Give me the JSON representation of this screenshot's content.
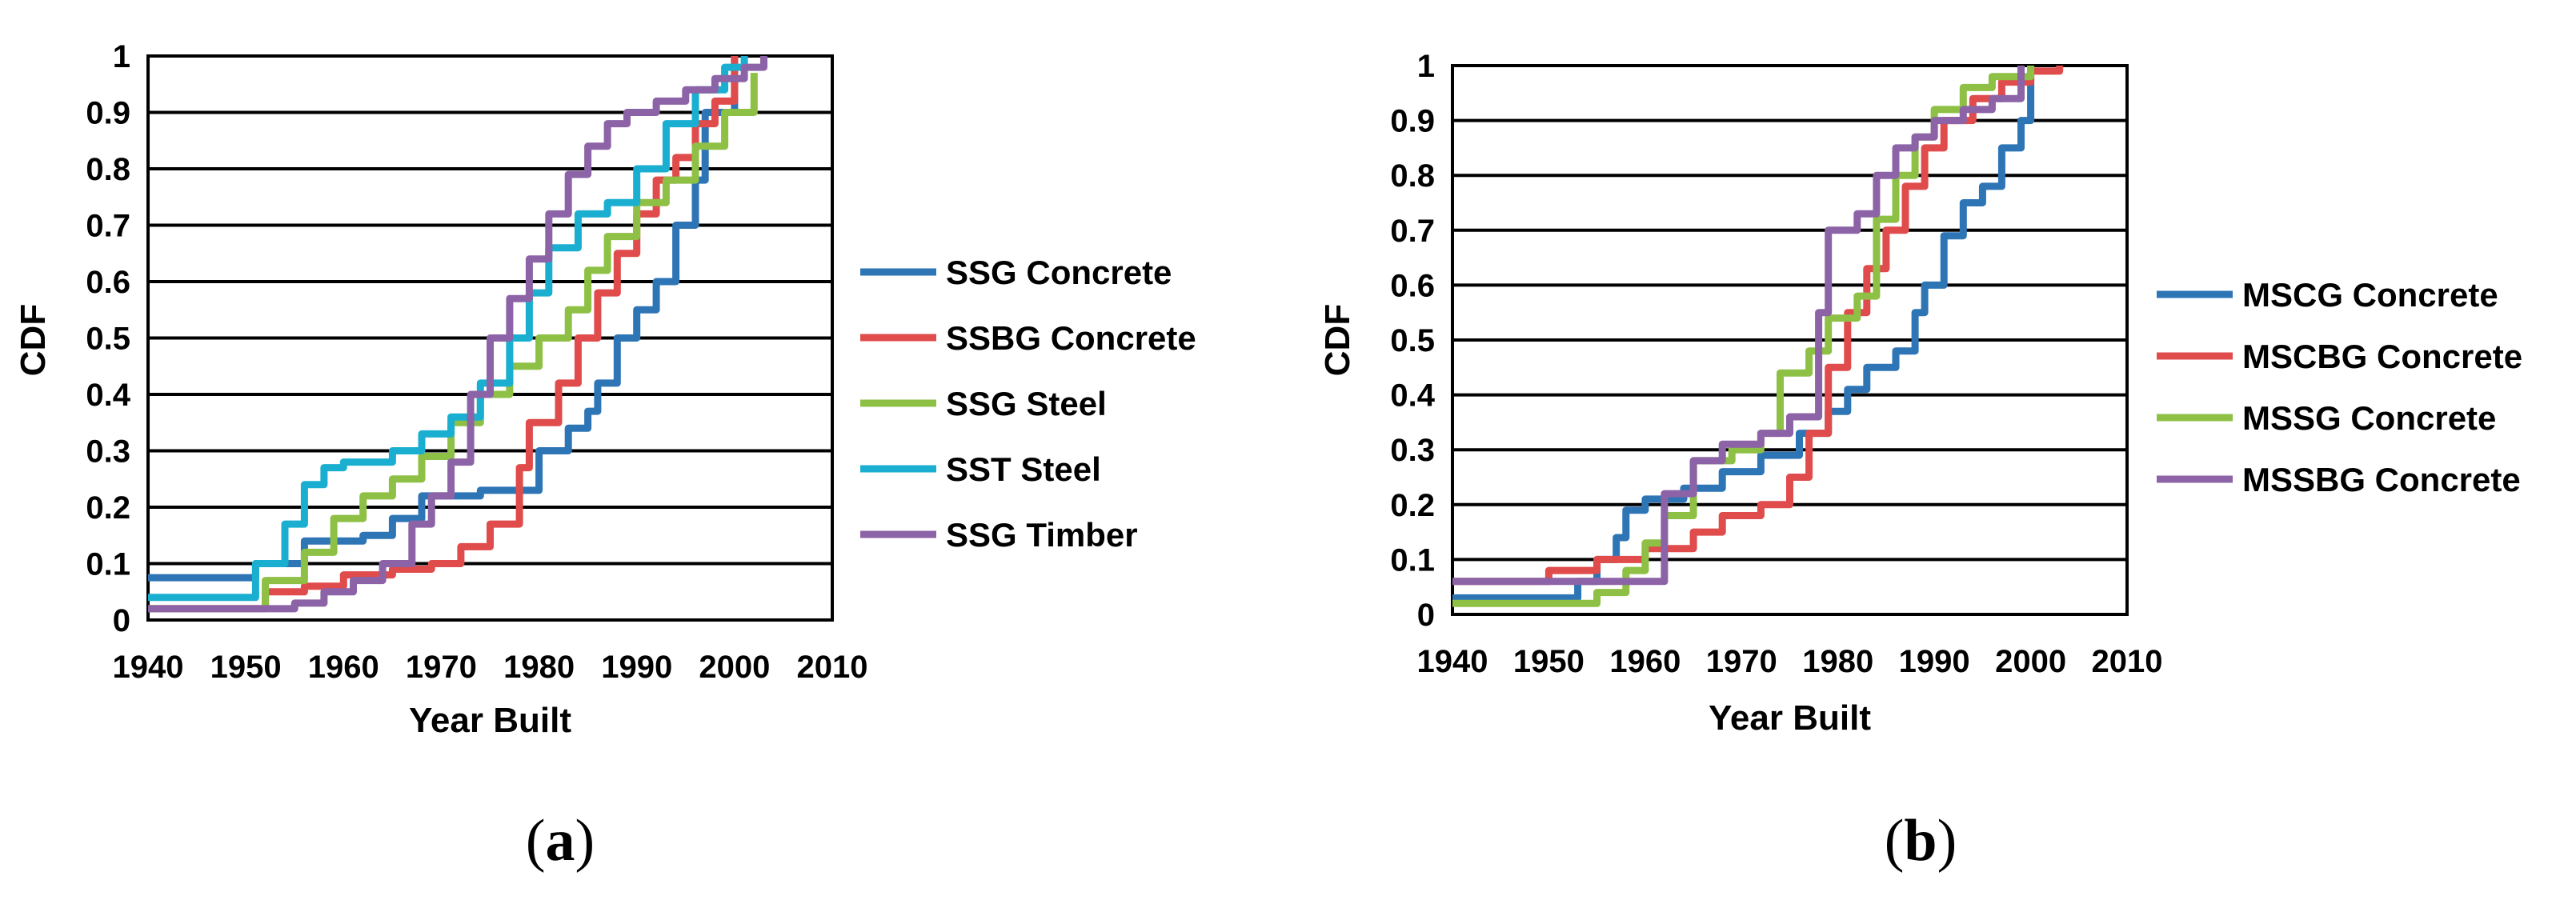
{
  "colors": {
    "blue": "#2E75B6",
    "red": "#E04B4B",
    "green": "#8DC045",
    "cyan": "#1AAFD0",
    "purple": "#8C63A6"
  },
  "chart_data": [
    {
      "type": "line",
      "step": true,
      "caption_letter": "a",
      "xlabel": "Year Built",
      "ylabel": "CDF",
      "xlim": [
        1940,
        2010
      ],
      "ylim": [
        0,
        1
      ],
      "xticks": [
        "1940",
        "1950",
        "1960",
        "1970",
        "1980",
        "1990",
        "2000",
        "2010"
      ],
      "yticks": [
        "0",
        "0.1",
        "0.2",
        "0.3",
        "0.4",
        "0.5",
        "0.6",
        "0.7",
        "0.8",
        "0.9",
        "1"
      ],
      "grid": true,
      "legend_position": "right",
      "series": [
        {
          "name": "SSG Concrete",
          "color": "#2E75B6",
          "x": [
            1940,
            1948,
            1951,
            1956,
            1962,
            1965,
            1968,
            1974,
            1977,
            1980,
            1983,
            1985,
            1986,
            1988,
            1990,
            1992,
            1994,
            1996,
            1997,
            2000
          ],
          "y": [
            0.075,
            0.075,
            0.1,
            0.14,
            0.15,
            0.18,
            0.22,
            0.23,
            0.23,
            0.3,
            0.34,
            0.37,
            0.42,
            0.5,
            0.55,
            0.6,
            0.7,
            0.78,
            0.9,
            1.0
          ]
        },
        {
          "name": "SSBG Concrete",
          "color": "#E04B4B",
          "x": [
            1940,
            1948,
            1952,
            1956,
            1960,
            1965,
            1969,
            1972,
            1975,
            1978,
            1979,
            1982,
            1984,
            1986,
            1988,
            1990,
            1992,
            1994,
            1996,
            1998,
            2000
          ],
          "y": [
            0.02,
            0.02,
            0.05,
            0.06,
            0.08,
            0.09,
            0.1,
            0.13,
            0.17,
            0.27,
            0.35,
            0.42,
            0.5,
            0.58,
            0.65,
            0.72,
            0.78,
            0.82,
            0.88,
            0.92,
            1.0
          ]
        },
        {
          "name": "SSG Steel",
          "color": "#8DC045",
          "x": [
            1940,
            1948,
            1952,
            1956,
            1959,
            1962,
            1965,
            1968,
            1971,
            1974,
            1977,
            1980,
            1983,
            1985,
            1987,
            1990,
            1993,
            1996,
            1999,
            2002
          ],
          "y": [
            0.02,
            0.02,
            0.07,
            0.12,
            0.18,
            0.22,
            0.25,
            0.29,
            0.35,
            0.4,
            0.45,
            0.5,
            0.55,
            0.62,
            0.68,
            0.74,
            0.78,
            0.84,
            0.9,
            0.97
          ]
        },
        {
          "name": "SST Steel",
          "color": "#1AAFD0",
          "x": [
            1940,
            1948,
            1951,
            1954,
            1956,
            1958,
            1960,
            1965,
            1968,
            1971,
            1974,
            1977,
            1979,
            1981,
            1984,
            1987,
            1990,
            1993,
            1996,
            1999,
            2001
          ],
          "y": [
            0.04,
            0.04,
            0.1,
            0.17,
            0.24,
            0.27,
            0.28,
            0.3,
            0.33,
            0.36,
            0.42,
            0.5,
            0.58,
            0.66,
            0.72,
            0.74,
            0.8,
            0.88,
            0.94,
            0.98,
            1.0
          ]
        },
        {
          "name": "SSG Timber",
          "color": "#8C63A6",
          "x": [
            1940,
            1948,
            1955,
            1958,
            1961,
            1964,
            1967,
            1969,
            1971,
            1973,
            1975,
            1977,
            1979,
            1981,
            1983,
            1985,
            1987,
            1989,
            1992,
            1995,
            1998,
            2001,
            2003
          ],
          "y": [
            0.02,
            0.02,
            0.03,
            0.05,
            0.07,
            0.1,
            0.17,
            0.22,
            0.28,
            0.4,
            0.5,
            0.57,
            0.64,
            0.72,
            0.79,
            0.84,
            0.88,
            0.9,
            0.92,
            0.94,
            0.96,
            0.98,
            1.0
          ]
        }
      ]
    },
    {
      "type": "line",
      "step": true,
      "caption_letter": "b",
      "xlabel": "Year Built",
      "ylabel": "CDF",
      "xlim": [
        1940,
        2010
      ],
      "ylim": [
        0,
        1
      ],
      "xticks": [
        "1940",
        "1950",
        "1960",
        "1970",
        "1980",
        "1990",
        "2000",
        "2010"
      ],
      "yticks": [
        "0",
        "0.1",
        "0.2",
        "0.3",
        "0.4",
        "0.5",
        "0.6",
        "0.7",
        "0.8",
        "0.9",
        "1"
      ],
      "grid": true,
      "legend_position": "right",
      "series": [
        {
          "name": "MSCG Concrete",
          "color": "#2E75B6",
          "x": [
            1940,
            1950,
            1953,
            1955,
            1957,
            1958,
            1960,
            1964,
            1968,
            1972,
            1976,
            1979,
            1981,
            1983,
            1986,
            1988,
            1989,
            1991,
            1993,
            1995,
            1997,
            1999,
            2000
          ],
          "y": [
            0.03,
            0.03,
            0.06,
            0.1,
            0.14,
            0.19,
            0.21,
            0.23,
            0.26,
            0.29,
            0.33,
            0.37,
            0.41,
            0.45,
            0.48,
            0.55,
            0.6,
            0.69,
            0.75,
            0.78,
            0.85,
            0.9,
            1.0
          ]
        },
        {
          "name": "MSCBG Concrete",
          "color": "#E04B4B",
          "x": [
            1940,
            1945,
            1950,
            1955,
            1960,
            1965,
            1968,
            1972,
            1975,
            1977,
            1979,
            1981,
            1983,
            1985,
            1987,
            1989,
            1991,
            1994,
            1997,
            2000,
            2003
          ],
          "y": [
            0.06,
            0.06,
            0.08,
            0.1,
            0.12,
            0.15,
            0.18,
            0.2,
            0.25,
            0.33,
            0.45,
            0.55,
            0.63,
            0.7,
            0.78,
            0.85,
            0.9,
            0.94,
            0.97,
            0.99,
            1.0
          ]
        },
        {
          "name": "MSSG Concrete",
          "color": "#8DC045",
          "x": [
            1940,
            1950,
            1955,
            1958,
            1960,
            1962,
            1965,
            1969,
            1972,
            1974,
            1977,
            1979,
            1982,
            1984,
            1986,
            1988,
            1990,
            1993,
            1996,
            2000
          ],
          "y": [
            0.02,
            0.02,
            0.04,
            0.08,
            0.13,
            0.18,
            0.28,
            0.3,
            0.33,
            0.44,
            0.48,
            0.54,
            0.58,
            0.72,
            0.8,
            0.87,
            0.92,
            0.96,
            0.98,
            1.0
          ]
        },
        {
          "name": "MSSBG Concrete",
          "color": "#8C63A6",
          "x": [
            1940,
            1952,
            1960,
            1962,
            1965,
            1968,
            1972,
            1975,
            1978,
            1979,
            1980,
            1982,
            1984,
            1986,
            1988,
            1990,
            1993,
            1996,
            1999
          ],
          "y": [
            0.06,
            0.06,
            0.06,
            0.22,
            0.28,
            0.31,
            0.33,
            0.36,
            0.55,
            0.7,
            0.7,
            0.73,
            0.8,
            0.85,
            0.87,
            0.9,
            0.92,
            0.94,
            1.0
          ]
        }
      ]
    }
  ]
}
